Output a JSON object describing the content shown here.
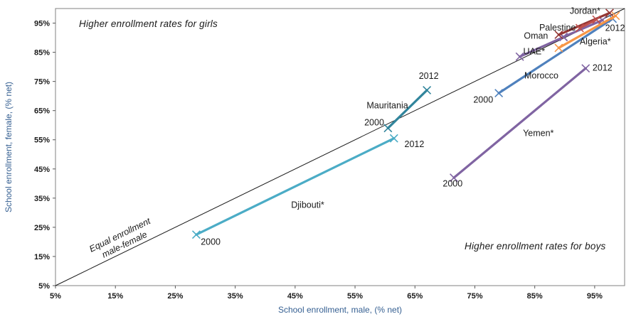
{
  "axes": {
    "x": {
      "label": "School enrollment, male, (% net)",
      "min": 5,
      "max": 100,
      "tick_values": [
        5,
        15,
        25,
        35,
        45,
        55,
        65,
        75,
        85,
        95
      ],
      "tick_labels": [
        "5%",
        "15%",
        "25%",
        "35%",
        "45%",
        "55%",
        "65%",
        "75%",
        "85%",
        "95%"
      ]
    },
    "y": {
      "label": "School enrollment, female, (% net)",
      "min": 5,
      "max": 100,
      "tick_values": [
        5,
        15,
        25,
        35,
        45,
        55,
        65,
        75,
        85,
        95
      ],
      "tick_labels": [
        "5%",
        "15%",
        "25%",
        "35%",
        "45%",
        "55%",
        "65%",
        "75%",
        "85%",
        "95%"
      ]
    }
  },
  "annotations": {
    "girls_text": "Higher enrollment rates for girls",
    "boys_text": "Higher enrollment rates for boys",
    "equal_line1": "Equal enrollment",
    "equal_line2": "male-female"
  },
  "colors": {
    "axis": "#595959",
    "border": "#808080",
    "diagonal": "#1a1a1a",
    "axis_title": "#366092",
    "text": "#1a1a1a"
  },
  "chart_data": {
    "type": "line",
    "title": "",
    "xlabel": "School enrollment, male, (% net)",
    "ylabel": "School enrollment, female, (% net)",
    "xlim": [
      5,
      100
    ],
    "ylim": [
      5,
      100
    ],
    "grid": false,
    "legend": "none",
    "diagonal": {
      "x1": 5,
      "y1": 5,
      "x2": 100,
      "y2": 100
    },
    "series": [
      {
        "name": "Djibouti*",
        "color": "#4BACC6",
        "points": [
          {
            "year": "2000",
            "x": 28.5,
            "y": 22.5
          },
          {
            "year": "2012",
            "x": 61.5,
            "y": 55.5
          }
        ],
        "name_label": {
          "x": 47.1,
          "y": 32.6
        },
        "year_labels": [
          {
            "text": "2000",
            "x": 30.9,
            "y": 20.0
          },
          {
            "text": "2012",
            "x": 64.9,
            "y": 53.5
          }
        ]
      },
      {
        "name": "Mauritania",
        "color": "#31859C",
        "points": [
          {
            "year": "2000",
            "x": 60.5,
            "y": 59.0
          },
          {
            "year": "2012",
            "x": 67.0,
            "y": 72.0
          }
        ],
        "name_label": {
          "x": 60.4,
          "y": 66.7
        },
        "year_labels": [
          {
            "text": "2000",
            "x": 58.2,
            "y": 60.9
          },
          {
            "text": "2012",
            "x": 67.3,
            "y": 76.8
          }
        ]
      },
      {
        "name": "Yemen*",
        "color": "#8064A2",
        "points": [
          {
            "year": "2000",
            "x": 71.5,
            "y": 42.0
          },
          {
            "year": "2012",
            "x": 93.5,
            "y": 79.5
          }
        ],
        "name_label": {
          "x": 85.6,
          "y": 57.2
        },
        "year_labels": [
          {
            "text": "2000",
            "x": 71.3,
            "y": 40.0
          },
          {
            "text": "2012",
            "x": 96.3,
            "y": 79.6
          }
        ]
      },
      {
        "name": "Morocco",
        "color": "#4F81BD",
        "points": [
          {
            "year": "2000",
            "x": 79.0,
            "y": 71.0
          },
          {
            "year": "2012",
            "x": 98.0,
            "y": 96.5
          }
        ],
        "name_label": {
          "x": 86.1,
          "y": 77.0
        },
        "year_labels": [
          {
            "text": "2000",
            "x": 76.4,
            "y": 68.7
          }
        ]
      },
      {
        "name": "UAE*",
        "color": "#8064A2",
        "points": [
          {
            "year": "2000",
            "x": 82.5,
            "y": 83.5
          },
          {
            "year": "2012",
            "x": 89.8,
            "y": 90.2
          }
        ],
        "name_label": {
          "x": 84.9,
          "y": 85.3
        },
        "year_labels": []
      },
      {
        "name": "Oman",
        "color": "#8064A2",
        "points": [
          {
            "year": "2000",
            "x": 89.8,
            "y": 90.3
          },
          {
            "year": "2012",
            "x": 96.3,
            "y": 96.0
          }
        ],
        "name_label": {
          "x": 85.2,
          "y": 90.6
        },
        "year_labels": []
      },
      {
        "name": "Jordan*",
        "color": "#943634",
        "points": [
          {
            "year": "2000",
            "x": 89.0,
            "y": 91.0
          },
          {
            "year": "2012",
            "x": 97.5,
            "y": 98.5
          }
        ],
        "name_label": {
          "x": 93.4,
          "y": 99.2
        },
        "year_labels": []
      },
      {
        "name": "Palestine",
        "color": "#C0504D",
        "points": [
          {
            "year": "2000",
            "x": 95.3,
            "y": 96.2
          },
          {
            "year": "2012",
            "x": 92.5,
            "y": 93.3
          }
        ],
        "name_label": {
          "x": 88.8,
          "y": 93.4
        },
        "year_labels": []
      },
      {
        "name": "Algeria*",
        "color": "#F79646",
        "points": [
          {
            "year": "2000",
            "x": 89.0,
            "y": 86.5
          },
          {
            "year": "2012",
            "x": 98.5,
            "y": 97.5
          }
        ],
        "name_label": {
          "x": 95.1,
          "y": 88.7
        },
        "year_labels": []
      }
    ],
    "shared_year_labels": [
      {
        "text": "2012",
        "x": 98.4,
        "y": 93.3
      }
    ]
  }
}
